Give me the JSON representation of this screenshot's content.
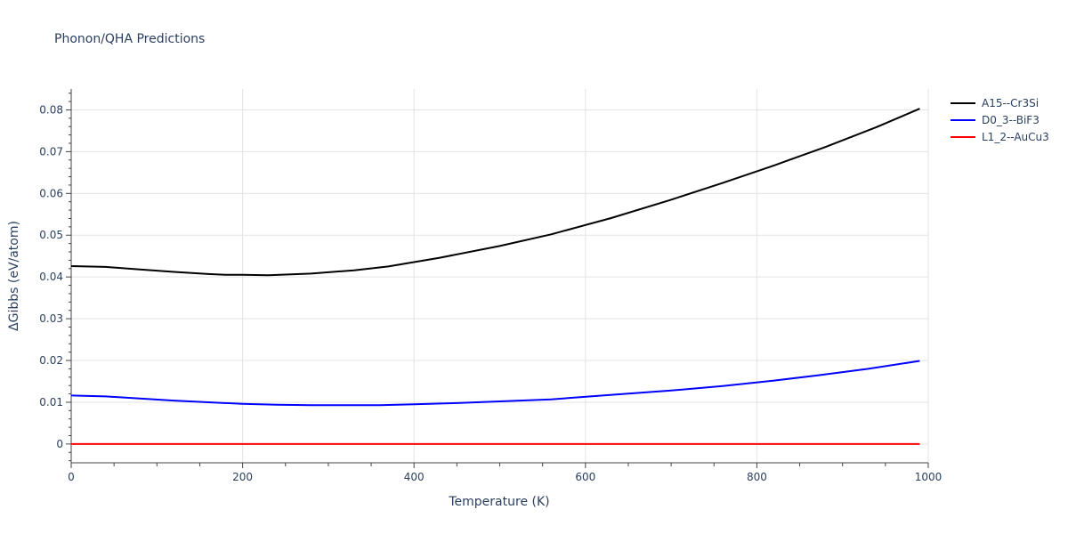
{
  "chart_data": {
    "type": "line",
    "title": "Phonon/QHA Predictions",
    "xlabel": "Temperature (K)",
    "ylabel": "ΔGibbs (eV/atom)",
    "xlim": [
      0,
      1000
    ],
    "ylim": [
      -0.0045,
      0.085
    ],
    "xticks": [
      0,
      200,
      400,
      600,
      800,
      1000
    ],
    "xtick_labels": [
      "0",
      "200",
      "400",
      "600",
      "800",
      "1000"
    ],
    "yticks": [
      0,
      0.01,
      0.02,
      0.03,
      0.04,
      0.05,
      0.06,
      0.07,
      0.08
    ],
    "ytick_labels": [
      "0",
      "0.01",
      "0.02",
      "0.03",
      "0.04",
      "0.05",
      "0.06",
      "0.07",
      "0.08"
    ],
    "grid": true,
    "legend_position": "top-right",
    "series": [
      {
        "name": "A15--Cr3Si",
        "color": "#000000",
        "x": [
          0,
          40,
          80,
          120,
          160,
          180,
          200,
          230,
          280,
          330,
          370,
          430,
          500,
          560,
          630,
          700,
          760,
          820,
          880,
          940,
          990
        ],
        "y": [
          0.0426,
          0.0424,
          0.0418,
          0.0412,
          0.0407,
          0.0405,
          0.0405,
          0.0404,
          0.0408,
          0.0416,
          0.0425,
          0.0446,
          0.0474,
          0.0502,
          0.0541,
          0.0585,
          0.0625,
          0.0667,
          0.0711,
          0.0759,
          0.0803
        ]
      },
      {
        "name": "D0_3--BiF3",
        "color": "#0000ff",
        "x": [
          0,
          40,
          80,
          120,
          160,
          200,
          240,
          280,
          320,
          360,
          400,
          450,
          500,
          560,
          620,
          700,
          760,
          820,
          870,
          930,
          990
        ],
        "y": [
          0.0116,
          0.0114,
          0.0109,
          0.0104,
          0.01,
          0.0096,
          0.0094,
          0.0093,
          0.0093,
          0.0093,
          0.0095,
          0.0098,
          0.0102,
          0.0107,
          0.0116,
          0.0128,
          0.0139,
          0.0152,
          0.0164,
          0.018,
          0.0199
        ]
      },
      {
        "name": "L1_2--AuCu3",
        "color": "#ff0000",
        "x": [
          0,
          990
        ],
        "y": [
          0,
          0
        ]
      }
    ]
  }
}
